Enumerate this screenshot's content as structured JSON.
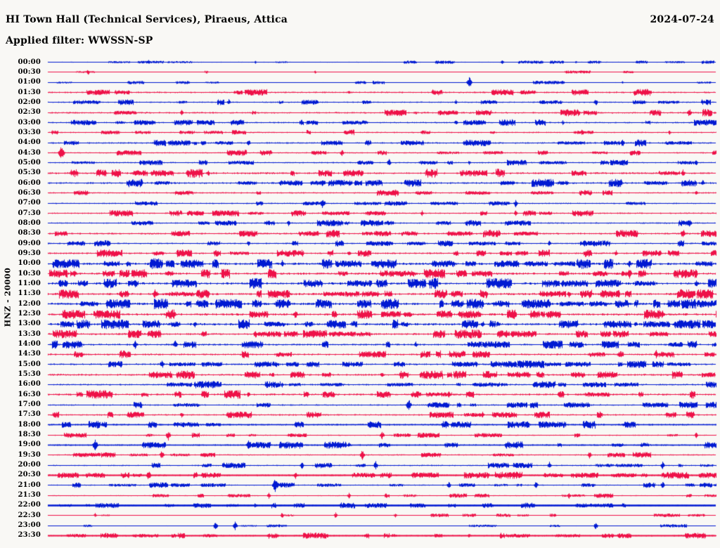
{
  "header": {
    "title": "HI Town Hall (Technical Services), Piraeus, Attica",
    "date": "2024-07-24",
    "filter": "Applied filter: WWSSN-SP"
  },
  "chart_data": {
    "type": "line",
    "subtype": "helicorder-seismogram",
    "title": "HI Town Hall (Technical Services), Piraeus, Attica",
    "date": "2024-07-24",
    "filter_label": "Applied filter: WWSSN-SP",
    "ylabel": "HNZ - 20000",
    "x_axis": {
      "row_start": "00:00",
      "row_end": "23:30",
      "minutes_per_row": 30,
      "rows_per_day": 48
    },
    "legend": "alternating blue/red traces per 30-minute segment",
    "grid": false,
    "colors": {
      "blue": "#0019d2",
      "red": "#ee1148",
      "text": "#000000",
      "background": "#f9f8f5"
    },
    "rows": [
      {
        "time": "00:00",
        "color": "blue",
        "amp": 0.7,
        "burst": 0.25,
        "spikes": [
          [
            0.15,
            3
          ],
          [
            0.31,
            2
          ],
          [
            0.55,
            2
          ],
          [
            0.68,
            3
          ],
          [
            0.79,
            2
          ]
        ]
      },
      {
        "time": "00:30",
        "color": "red",
        "amp": 0.5,
        "burst": 0.1,
        "spikes": [
          [
            0.06,
            4
          ],
          [
            0.4,
            2
          ]
        ]
      },
      {
        "time": "01:00",
        "color": "blue",
        "amp": 0.6,
        "burst": 0.2,
        "spikes": [
          [
            0.21,
            2
          ],
          [
            0.63,
            8
          ],
          [
            0.86,
            2
          ]
        ]
      },
      {
        "time": "01:30",
        "color": "red",
        "amp": 1.2,
        "burst": 0.55,
        "spikes": [
          [
            0.12,
            4
          ],
          [
            0.3,
            4
          ],
          [
            0.45,
            3
          ],
          [
            0.9,
            3
          ]
        ]
      },
      {
        "time": "02:00",
        "color": "blue",
        "amp": 1.0,
        "burst": 0.45,
        "spikes": [
          [
            0.27,
            4
          ],
          [
            0.61,
            3
          ],
          [
            0.82,
            5
          ]
        ]
      },
      {
        "time": "02:30",
        "color": "red",
        "amp": 1.3,
        "burst": 0.65,
        "spikes": [
          [
            0.2,
            4
          ],
          [
            0.55,
            3
          ],
          [
            0.96,
            6
          ]
        ]
      },
      {
        "time": "03:00",
        "color": "blue",
        "amp": 1.1,
        "burst": 0.5,
        "spikes": [
          [
            0.05,
            3
          ],
          [
            0.4,
            3
          ],
          [
            0.61,
            4
          ],
          [
            0.77,
            3
          ]
        ]
      },
      {
        "time": "03:30",
        "color": "red",
        "amp": 1.0,
        "burst": 0.5,
        "spikes": [
          [
            0.8,
            5
          ],
          [
            0.93,
            3
          ]
        ]
      },
      {
        "time": "04:00",
        "color": "blue",
        "amp": 1.2,
        "burst": 0.55,
        "spikes": [
          [
            0.3,
            5
          ],
          [
            0.86,
            5
          ]
        ]
      },
      {
        "time": "04:30",
        "color": "red",
        "amp": 1.0,
        "burst": 0.45,
        "spikes": [
          [
            0.02,
            10
          ],
          [
            0.44,
            5
          ]
        ]
      },
      {
        "time": "05:00",
        "color": "blue",
        "amp": 1.0,
        "burst": 0.5,
        "spikes": [
          [
            0.51,
            5
          ],
          [
            0.63,
            3
          ],
          [
            0.97,
            4
          ]
        ]
      },
      {
        "time": "05:30",
        "color": "red",
        "amp": 1.5,
        "burst": 0.8,
        "spikes": [
          [
            0.24,
            4
          ],
          [
            0.65,
            4
          ],
          [
            0.95,
            5
          ]
        ]
      },
      {
        "time": "06:00",
        "color": "blue",
        "amp": 1.4,
        "burst": 0.7,
        "spikes": [
          [
            0.41,
            5
          ],
          [
            0.98,
            5
          ]
        ]
      },
      {
        "time": "06:30",
        "color": "red",
        "amp": 1.1,
        "burst": 0.55,
        "spikes": [
          [
            0.52,
            5
          ],
          [
            0.97,
            4
          ]
        ]
      },
      {
        "time": "07:00",
        "color": "blue",
        "amp": 1.0,
        "burst": 0.5,
        "spikes": [
          [
            0.41,
            6
          ],
          [
            0.7,
            5
          ]
        ]
      },
      {
        "time": "07:30",
        "color": "red",
        "amp": 1.1,
        "burst": 0.55,
        "spikes": [
          [
            0.25,
            4
          ],
          [
            0.56,
            4
          ],
          [
            0.7,
            4
          ]
        ]
      },
      {
        "time": "08:00",
        "color": "blue",
        "amp": 1.1,
        "burst": 0.55,
        "spikes": [
          [
            0.28,
            4
          ],
          [
            0.36,
            4
          ],
          [
            0.96,
            5
          ]
        ]
      },
      {
        "time": "08:30",
        "color": "red",
        "amp": 1.3,
        "burst": 0.65,
        "spikes": [
          [
            0.6,
            4
          ],
          [
            0.95,
            7
          ]
        ]
      },
      {
        "time": "09:00",
        "color": "blue",
        "amp": 1.1,
        "burst": 0.55,
        "spikes": [
          [
            0.3,
            4
          ],
          [
            0.75,
            4
          ]
        ]
      },
      {
        "time": "09:30",
        "color": "red",
        "amp": 1.3,
        "burst": 0.65,
        "spikes": [
          [
            0.45,
            4
          ],
          [
            0.85,
            4
          ]
        ]
      },
      {
        "time": "10:00",
        "color": "blue",
        "amp": 1.8,
        "burst": 0.9,
        "spikes": [
          [
            0.03,
            6
          ],
          [
            0.35,
            5
          ],
          [
            0.87,
            5
          ]
        ]
      },
      {
        "time": "10:30",
        "color": "red",
        "amp": 1.7,
        "burst": 0.9,
        "spikes": [
          [
            0.04,
            5
          ],
          [
            0.87,
            7
          ]
        ]
      },
      {
        "time": "11:00",
        "color": "blue",
        "amp": 1.8,
        "burst": 0.9,
        "spikes": [
          [
            0.13,
            5
          ],
          [
            0.77,
            5
          ],
          [
            0.97,
            5
          ]
        ]
      },
      {
        "time": "11:30",
        "color": "red",
        "amp": 1.7,
        "burst": 0.9,
        "spikes": [
          [
            0.16,
            6
          ],
          [
            0.35,
            5
          ],
          [
            0.78,
            5
          ]
        ]
      },
      {
        "time": "12:00",
        "color": "blue",
        "amp": 1.8,
        "burst": 0.9,
        "spikes": [
          [
            0.31,
            6
          ],
          [
            0.52,
            5
          ],
          [
            0.75,
            5
          ]
        ]
      },
      {
        "time": "12:30",
        "color": "red",
        "amp": 1.7,
        "burst": 0.9,
        "spikes": [
          [
            0.37,
            6
          ],
          [
            0.92,
            6
          ]
        ]
      },
      {
        "time": "13:00",
        "color": "blue",
        "amp": 1.8,
        "burst": 0.9,
        "spikes": [
          [
            0.22,
            5
          ],
          [
            0.65,
            5
          ],
          [
            0.88,
            4
          ]
        ]
      },
      {
        "time": "13:30",
        "color": "red",
        "amp": 1.5,
        "burst": 0.8,
        "spikes": [
          [
            0.31,
            6
          ],
          [
            0.72,
            5
          ]
        ]
      },
      {
        "time": "14:00",
        "color": "blue",
        "amp": 1.4,
        "burst": 0.7,
        "spikes": [
          [
            0.13,
            6
          ],
          [
            0.19,
            6
          ],
          [
            0.55,
            4
          ]
        ]
      },
      {
        "time": "14:30",
        "color": "red",
        "amp": 1.4,
        "burst": 0.75,
        "spikes": [
          [
            0.48,
            4
          ],
          [
            0.91,
            6
          ]
        ]
      },
      {
        "time": "15:00",
        "color": "blue",
        "amp": 1.3,
        "burst": 0.7,
        "spikes": [
          [
            0.17,
            6
          ],
          [
            0.87,
            4
          ]
        ]
      },
      {
        "time": "15:30",
        "color": "red",
        "amp": 1.4,
        "burst": 0.75,
        "spikes": [
          [
            0.3,
            4
          ],
          [
            0.5,
            4
          ]
        ]
      },
      {
        "time": "16:00",
        "color": "blue",
        "amp": 1.2,
        "burst": 0.6,
        "spikes": [
          [
            0.35,
            4
          ],
          [
            0.74,
            6
          ]
        ]
      },
      {
        "time": "16:30",
        "color": "red",
        "amp": 1.5,
        "burst": 0.8,
        "spikes": [
          [
            0.3,
            4
          ],
          [
            0.6,
            4
          ]
        ]
      },
      {
        "time": "17:00",
        "color": "blue",
        "amp": 1.1,
        "burst": 0.5,
        "spikes": [
          [
            0.54,
            8
          ],
          [
            0.92,
            4
          ]
        ]
      },
      {
        "time": "17:30",
        "color": "red",
        "amp": 1.2,
        "burst": 0.6,
        "spikes": [
          [
            0.2,
            4
          ],
          [
            0.65,
            4
          ]
        ]
      },
      {
        "time": "18:00",
        "color": "blue",
        "amp": 1.3,
        "burst": 0.85,
        "weight": 1.5,
        "spikes": [
          [
            0.62,
            4
          ]
        ]
      },
      {
        "time": "18:30",
        "color": "red",
        "amp": 0.9,
        "burst": 0.4,
        "spikes": [
          [
            0.18,
            7
          ],
          [
            0.5,
            6
          ],
          [
            0.97,
            4
          ]
        ]
      },
      {
        "time": "19:00",
        "color": "blue",
        "amp": 1.2,
        "burst": 0.7,
        "weight": 1.5,
        "spikes": [
          [
            0.07,
            8
          ],
          [
            0.3,
            6
          ],
          [
            0.45,
            4
          ]
        ]
      },
      {
        "time": "19:30",
        "color": "red",
        "amp": 1.0,
        "burst": 0.5,
        "spikes": [
          [
            0.17,
            6
          ],
          [
            0.47,
            7
          ],
          [
            0.81,
            5
          ]
        ]
      },
      {
        "time": "20:00",
        "color": "blue",
        "amp": 1.0,
        "burst": 0.5,
        "spikes": [
          [
            0.38,
            5
          ],
          [
            0.49,
            6
          ],
          [
            0.75,
            5
          ],
          [
            0.92,
            5
          ]
        ]
      },
      {
        "time": "20:30",
        "color": "red",
        "amp": 1.2,
        "burst": 0.85,
        "weight": 2,
        "spikes": [
          [
            0.15,
            7
          ],
          [
            0.37,
            5
          ]
        ]
      },
      {
        "time": "21:00",
        "color": "blue",
        "amp": 0.9,
        "burst": 0.4,
        "spikes": [
          [
            0.34,
            9
          ],
          [
            0.6,
            5
          ],
          [
            0.73,
            5
          ],
          [
            0.92,
            5
          ]
        ]
      },
      {
        "time": "21:30",
        "color": "red",
        "amp": 0.8,
        "burst": 0.4,
        "spikes": [
          [
            0.33,
            4
          ],
          [
            0.45,
            4
          ],
          [
            0.78,
            4
          ]
        ]
      },
      {
        "time": "22:00",
        "color": "blue",
        "amp": 1.0,
        "burst": 0.9,
        "weight": 2.4,
        "spikes": [
          [
            0.31,
            4
          ],
          [
            0.48,
            3
          ]
        ]
      },
      {
        "time": "22:30",
        "color": "red",
        "amp": 0.6,
        "burst": 0.2,
        "spikes": [
          [
            0.07,
            3
          ],
          [
            0.35,
            4
          ],
          [
            0.43,
            4
          ],
          [
            0.52,
            3
          ]
        ]
      },
      {
        "time": "23:00",
        "color": "blue",
        "amp": 0.6,
        "burst": 0.25,
        "spikes": [
          [
            0.25,
            6
          ],
          [
            0.28,
            6
          ],
          [
            0.82,
            5
          ]
        ]
      },
      {
        "time": "23:30",
        "color": "red",
        "amp": 1.1,
        "burst": 0.9,
        "weight": 2,
        "spikes": [
          [
            0.33,
            4
          ],
          [
            0.4,
            4
          ],
          [
            0.63,
            3
          ]
        ]
      }
    ]
  }
}
